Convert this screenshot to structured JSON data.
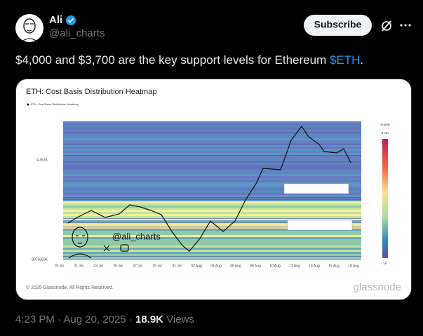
{
  "author": {
    "name": "Ali",
    "handle": "@ali_charts"
  },
  "actions": {
    "subscribe": "Subscribe"
  },
  "tweet": {
    "text_parts": [
      "$4,000 and $3,700 are the key support levels for Ethereum ",
      "$ETH",
      "."
    ]
  },
  "media": {
    "title": "ETH: Cost Basis Distribution Heatmap",
    "legend": "ETH: Cost Basis Distribution Heatmap",
    "y_labels": [
      "4.361K",
      "8073659K"
    ],
    "x_labels": [
      "19 Jul",
      "21 Jul",
      "23 Jul",
      "25 Jul",
      "27 Jul",
      "29 Jul",
      "31 Jul",
      "02 Aug",
      "04 Aug",
      "06 Aug",
      "08 Aug",
      "10 Aug",
      "12 Aug",
      "14 Aug",
      "16 Aug",
      "18 Aug"
    ],
    "colorbar": {
      "title": "Supply",
      "max": "874K",
      "min": "1K"
    },
    "watermark": "@ali_charts",
    "copyright": "© 2025 Glassnode. All Rights Reserved.",
    "brand": "glassnode"
  },
  "footer": {
    "time": "4:23 PM",
    "date": "Aug 20, 2025",
    "views_count": "18.9K",
    "views_label": "Views"
  }
}
